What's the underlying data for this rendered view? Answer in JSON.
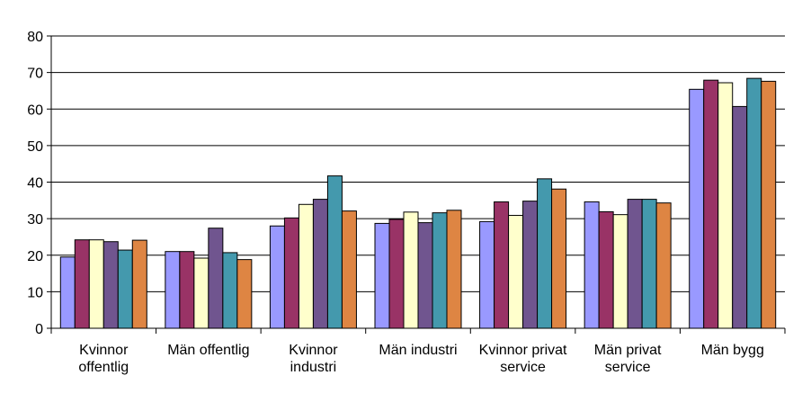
{
  "chart_data": {
    "type": "bar",
    "title": "",
    "xlabel": "",
    "ylabel": "",
    "ylim": [
      0,
      80
    ],
    "yticks": [
      "0",
      "10",
      "20",
      "30",
      "40",
      "50",
      "60",
      "70",
      "80"
    ],
    "grid": true,
    "categories": [
      [
        "Kvinnor",
        "offentlig"
      ],
      [
        "Män offentlig"
      ],
      [
        "Kvinnor",
        "industri"
      ],
      [
        "Män industri"
      ],
      [
        "Kvinnor privat",
        "service"
      ],
      [
        "Män privat",
        "service"
      ],
      [
        "Män bygg"
      ]
    ],
    "series": [
      {
        "color": "#9999ff",
        "values": [
          19.5,
          21,
          28,
          28.7,
          29.2,
          34.6,
          65.4
        ]
      },
      {
        "color": "#993366",
        "values": [
          24.2,
          21,
          30.2,
          29.8,
          34.6,
          31.9,
          67.9
        ]
      },
      {
        "color": "#ffffcc",
        "values": [
          24.2,
          19.2,
          33.9,
          31.8,
          30.9,
          31.1,
          67.2
        ]
      },
      {
        "color": "#70558f",
        "values": [
          23.7,
          27.4,
          35.3,
          28.9,
          34.8,
          35.3,
          60.7
        ]
      },
      {
        "color": "#4499ad",
        "values": [
          21.4,
          20.7,
          41.7,
          31.6,
          40.9,
          35.3,
          68.4
        ]
      },
      {
        "color": "#de8543",
        "values": [
          24.1,
          18.8,
          32.1,
          32.3,
          38.1,
          34.3,
          67.6
        ]
      }
    ]
  }
}
